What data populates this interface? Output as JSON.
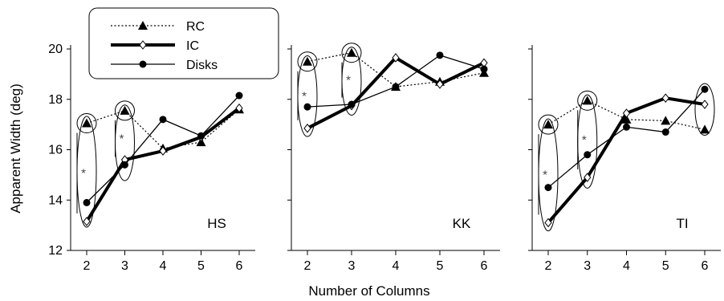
{
  "chart_data": {
    "type": "line",
    "xlabel": "Number of Columns",
    "ylabel": "Apparent Width (deg)",
    "ylim": [
      12,
      20
    ],
    "yticks": [
      12,
      14,
      16,
      18,
      20
    ],
    "x": [
      2,
      3,
      4,
      5,
      6
    ],
    "legend": {
      "placement": "top-left",
      "entries": [
        {
          "name": "RC",
          "style": "dotted",
          "marker": "triangle"
        },
        {
          "name": "IC",
          "style": "thick",
          "marker": "open-diamond"
        },
        {
          "name": "Disks",
          "style": "thin",
          "marker": "filled-circle"
        }
      ]
    },
    "panels": [
      {
        "label": "HS",
        "series": [
          {
            "name": "RC",
            "values": [
              17.05,
              17.55,
              16.05,
              16.3,
              17.6
            ]
          },
          {
            "name": "IC",
            "values": [
              13.15,
              15.6,
              15.95,
              16.5,
              17.65
            ]
          },
          {
            "name": "Disks",
            "values": [
              13.9,
              15.4,
              17.2,
              16.55,
              18.15
            ]
          }
        ],
        "circled": [
          [
            2,
            13.05,
            17.2
          ],
          [
            3,
            14.9,
            17.65
          ]
        ],
        "significant": [
          2,
          3
        ]
      },
      {
        "label": "KK",
        "series": [
          {
            "name": "RC",
            "values": [
              19.5,
              19.85,
              18.5,
              18.7,
              19.05
            ]
          },
          {
            "name": "IC",
            "values": [
              16.85,
              17.75,
              19.65,
              18.6,
              19.45
            ]
          },
          {
            "name": "Disks",
            "values": [
              17.7,
              17.8,
              18.5,
              19.75,
              19.2
            ]
          }
        ],
        "circled": [
          [
            2,
            16.65,
            19.6
          ],
          [
            3,
            17.5,
            19.95
          ]
        ],
        "significant": [
          2,
          3
        ]
      },
      {
        "label": "TI",
        "series": [
          {
            "name": "RC",
            "values": [
              17.0,
              17.95,
              17.2,
              17.15,
              16.8
            ]
          },
          {
            "name": "IC",
            "values": [
              13.1,
              14.9,
              17.45,
              18.05,
              17.8
            ]
          },
          {
            "name": "Disks",
            "values": [
              14.5,
              15.8,
              16.9,
              16.7,
              18.4
            ]
          }
        ],
        "circled": [
          [
            2,
            12.9,
            17.1
          ],
          [
            3,
            14.6,
            18.05
          ],
          [
            6,
            16.7,
            18.5
          ]
        ],
        "significant": [
          2,
          3
        ]
      }
    ],
    "significance_marker": "*",
    "colors": {
      "lines": "#000000",
      "circles": "#000000",
      "stars": "#444444",
      "background": "#ffffff"
    }
  }
}
